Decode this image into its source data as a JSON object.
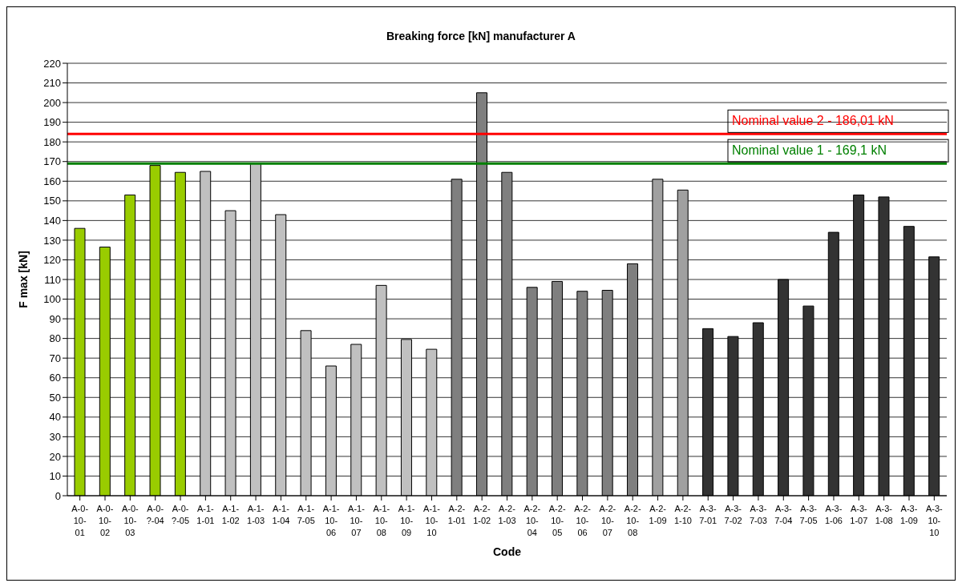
{
  "chart_data": {
    "type": "bar",
    "title": "Breaking force [kN] manufacturer A",
    "xlabel": "Code",
    "ylabel": "F max [kN]",
    "categories": [
      "A-0-10-01",
      "A-0-10-02",
      "A-0-10-03",
      "A-0-?-04",
      "A-0-?-05",
      "A-1-1-01",
      "A-1-1-02",
      "A-1-1-03",
      "A-1-1-04",
      "A-1-7-05",
      "A-1-10-06",
      "A-1-10-07",
      "A-1-10-08",
      "A-1-10-09",
      "A-1-10-10",
      "A-2-1-01",
      "A-2-1-02",
      "A-2-1-03",
      "A-2-10-04",
      "A-2-10-05",
      "A-2-10-06",
      "A-2-10-07",
      "A-2-10-08",
      "A-2-1-09",
      "A-2-1-10",
      "A-3-7-01",
      "A-3-7-02",
      "A-3-7-03",
      "A-3-7-04",
      "A-3-7-05",
      "A-3-1-06",
      "A-3-1-07",
      "A-3-1-08",
      "A-3-1-09",
      "A-3-10-10"
    ],
    "values": [
      136,
      126.5,
      153,
      168,
      164.5,
      165,
      145,
      169,
      143,
      84,
      66,
      77,
      107,
      79.5,
      74.5,
      161,
      205,
      164.5,
      106,
      109,
      104,
      104.5,
      118,
      161,
      155.5,
      85,
      81,
      88,
      110,
      96.5,
      134,
      153,
      152,
      137,
      121.5
    ],
    "colors": [
      "#99cc00",
      "#99cc00",
      "#99cc00",
      "#99cc00",
      "#99cc00",
      "#c0c0c0",
      "#c0c0c0",
      "#c0c0c0",
      "#c0c0c0",
      "#c0c0c0",
      "#c0c0c0",
      "#c0c0c0",
      "#c0c0c0",
      "#c0c0c0",
      "#c0c0c0",
      "#7f7f7f",
      "#7f7f7f",
      "#7f7f7f",
      "#7f7f7f",
      "#7f7f7f",
      "#7f7f7f",
      "#7f7f7f",
      "#7f7f7f",
      "#a0a0a0",
      "#a0a0a0",
      "#333333",
      "#333333",
      "#333333",
      "#333333",
      "#333333",
      "#333333",
      "#333333",
      "#333333",
      "#333333",
      "#333333"
    ],
    "ylim": [
      0,
      220
    ],
    "yticks": [
      0,
      10,
      20,
      30,
      40,
      50,
      60,
      70,
      80,
      90,
      100,
      110,
      120,
      130,
      140,
      150,
      160,
      170,
      180,
      190,
      200,
      210,
      220
    ],
    "grid": "y",
    "ref_lines": [
      {
        "axis": "y",
        "value": 184,
        "label": "Nominal value 2 - 186,01 kN",
        "color": "#ff0000"
      },
      {
        "axis": "y",
        "value": 169,
        "label": "Nominal value  1 - 169,1 kN",
        "color": "#008000"
      }
    ]
  }
}
